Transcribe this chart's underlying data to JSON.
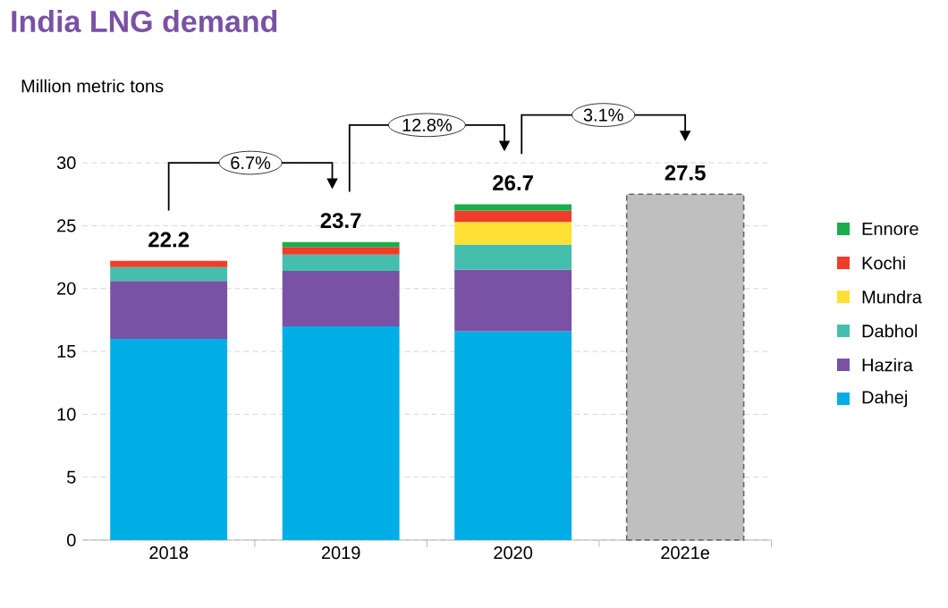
{
  "chart_data": {
    "type": "bar",
    "stacked": true,
    "title": "India LNG demand",
    "ylabel": "Million metric tons",
    "categories": [
      "2018",
      "2019",
      "2020",
      "2021e"
    ],
    "series": [
      {
        "name": "Dahej",
        "color": "#00aee6",
        "values": [
          16.0,
          17.0,
          16.6,
          null
        ]
      },
      {
        "name": "Hazira",
        "color": "#7a52a5",
        "values": [
          4.6,
          4.4,
          4.9,
          null
        ]
      },
      {
        "name": "Dabhol",
        "color": "#45bfad",
        "values": [
          1.1,
          1.3,
          2.0,
          null
        ]
      },
      {
        "name": "Mundra",
        "color": "#ffe135",
        "values": [
          null,
          null,
          1.8,
          null
        ]
      },
      {
        "name": "Kochi",
        "color": "#f03c2b",
        "values": [
          0.5,
          0.6,
          0.9,
          null
        ]
      },
      {
        "name": "Ennore",
        "color": "#1aae4a",
        "values": [
          null,
          0.4,
          0.5,
          null
        ]
      },
      {
        "color": "#bfbfbf",
        "line_style": "dashed",
        "values": [
          null,
          null,
          null,
          27.5
        ]
      }
    ],
    "totals": [
      "22.2",
      "23.7",
      "26.7",
      "27.5"
    ],
    "annotations": [
      "6.7%",
      "12.8%",
      "3.1%"
    ],
    "ylim": [
      0,
      30
    ],
    "yticks": [
      0,
      5,
      10,
      15,
      20,
      25,
      30
    ],
    "grid": "y",
    "legend": "right"
  }
}
